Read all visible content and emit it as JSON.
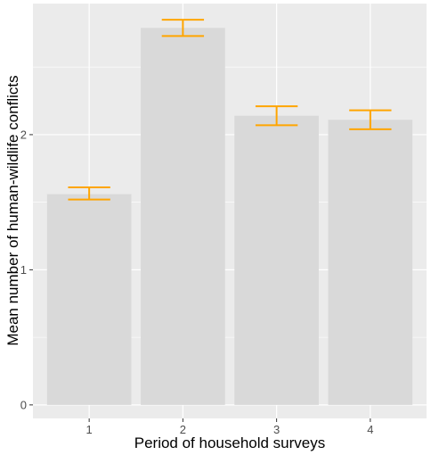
{
  "chart_data": {
    "type": "bar",
    "xlabel": "Period of household surveys",
    "ylabel": "Mean number of human-wildlife conflicts",
    "categories": [
      "1",
      "2",
      "3",
      "4"
    ],
    "values": [
      1.56,
      2.79,
      2.14,
      2.11
    ],
    "error_low": [
      1.52,
      2.73,
      2.07,
      2.04
    ],
    "error_high": [
      1.61,
      2.85,
      2.21,
      2.18
    ],
    "yticks": [
      0,
      1,
      2
    ],
    "ylim": [
      -0.1,
      2.97
    ],
    "grid": true,
    "colors": {
      "panel": "#EBEBEB",
      "grid": "#FFFFFF",
      "bar": "#D9D9D9",
      "errorbar": "#FFA500",
      "tick": "#333333"
    }
  }
}
